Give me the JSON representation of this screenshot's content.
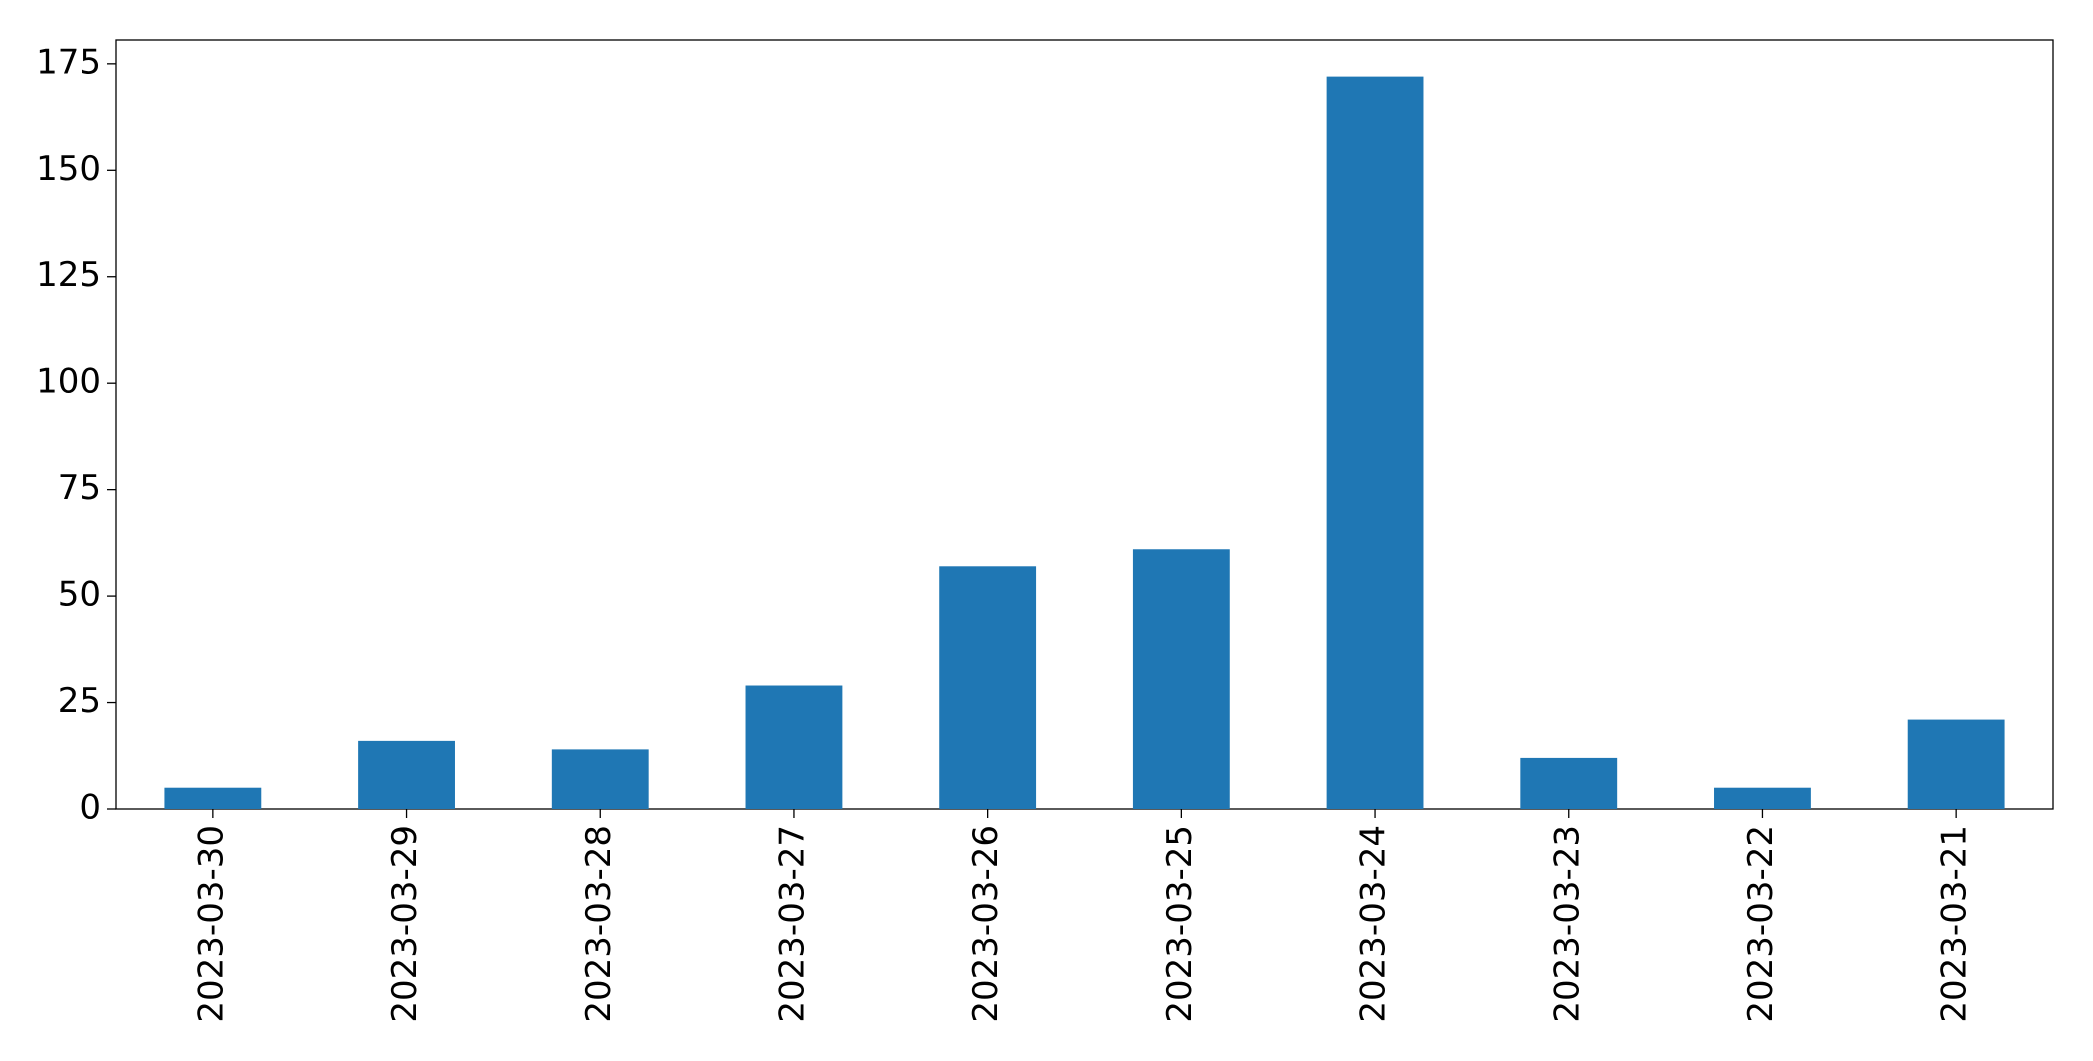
{
  "chart_data": {
    "type": "bar",
    "categories": [
      "2023-03-30",
      "2023-03-29",
      "2023-03-28",
      "2023-03-27",
      "2023-03-26",
      "2023-03-25",
      "2023-03-24",
      "2023-03-23",
      "2023-03-22",
      "2023-03-21"
    ],
    "values": [
      5,
      16,
      14,
      29,
      57,
      61,
      172,
      12,
      5,
      21
    ],
    "color": "#1f77b4",
    "ylim": [
      0,
      180.6
    ],
    "yticks": [
      0,
      25,
      50,
      75,
      100,
      125,
      150,
      175
    ],
    "grid": false
  }
}
